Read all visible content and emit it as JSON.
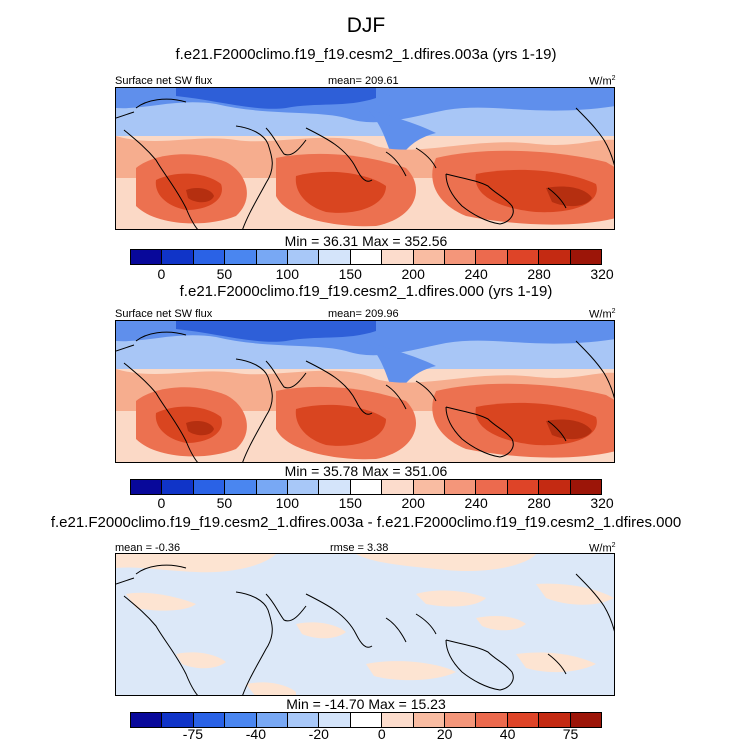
{
  "title": "DJF",
  "panels": [
    {
      "case": "f.e21.F2000climo.f19_f19.cesm2_1.dfires.003a (yrs 1-19)",
      "left_label": "Surface net SW flux",
      "center_label": "mean= 209.61",
      "units": "W/m",
      "units_exp": "2",
      "minmax": "Min =  36.31 Max = 352.56",
      "colorbar_labels": [
        "0",
        "50",
        "100",
        "150",
        "200",
        "240",
        "280",
        "320"
      ]
    },
    {
      "case": "f.e21.F2000climo.f19_f19.cesm2_1.dfires.000 (yrs 1-19)",
      "left_label": "Surface net SW flux",
      "center_label": "mean= 209.96",
      "units": "W/m",
      "units_exp": "2",
      "minmax": "Min =  35.78 Max = 351.06",
      "colorbar_labels": [
        "0",
        "50",
        "100",
        "150",
        "200",
        "240",
        "280",
        "320"
      ]
    },
    {
      "case": "f.e21.F2000climo.f19_f19.cesm2_1.dfires.003a - f.e21.F2000climo.f19_f19.cesm2_1.dfires.000",
      "left_label": "mean =  -0.36",
      "center_label": "rmse =  3.38",
      "units": "W/m",
      "units_exp": "2",
      "minmax": "Min = -14.70 Max =  15.23",
      "colorbar_labels": [
        "-75",
        "-40",
        "-20",
        "0",
        "20",
        "40",
        "75"
      ]
    }
  ],
  "colorbar_colors": [
    "#08089a",
    "#1034c8",
    "#2a62e6",
    "#4a86f0",
    "#78a8f4",
    "#a8c8f8",
    "#d4e4fa",
    "#ffffff",
    "#fcdccc",
    "#f9bca2",
    "#f4967a",
    "#ec6a4e",
    "#de4428",
    "#c42a12",
    "#9c1508"
  ],
  "map_colors": {
    "deep_blue": "#2e5fd8",
    "blue": "#5f8fec",
    "light_blue": "#a8c6f6",
    "pale_blue": "#d6e5fb",
    "pale_red": "#fbd9c6",
    "light_red": "#f6ad8e",
    "red": "#ec7150",
    "dark_red": "#d94520",
    "deepest_red": "#b52f10",
    "diff_blue": "#dce8f8",
    "diff_peach": "#fde4d2"
  }
}
